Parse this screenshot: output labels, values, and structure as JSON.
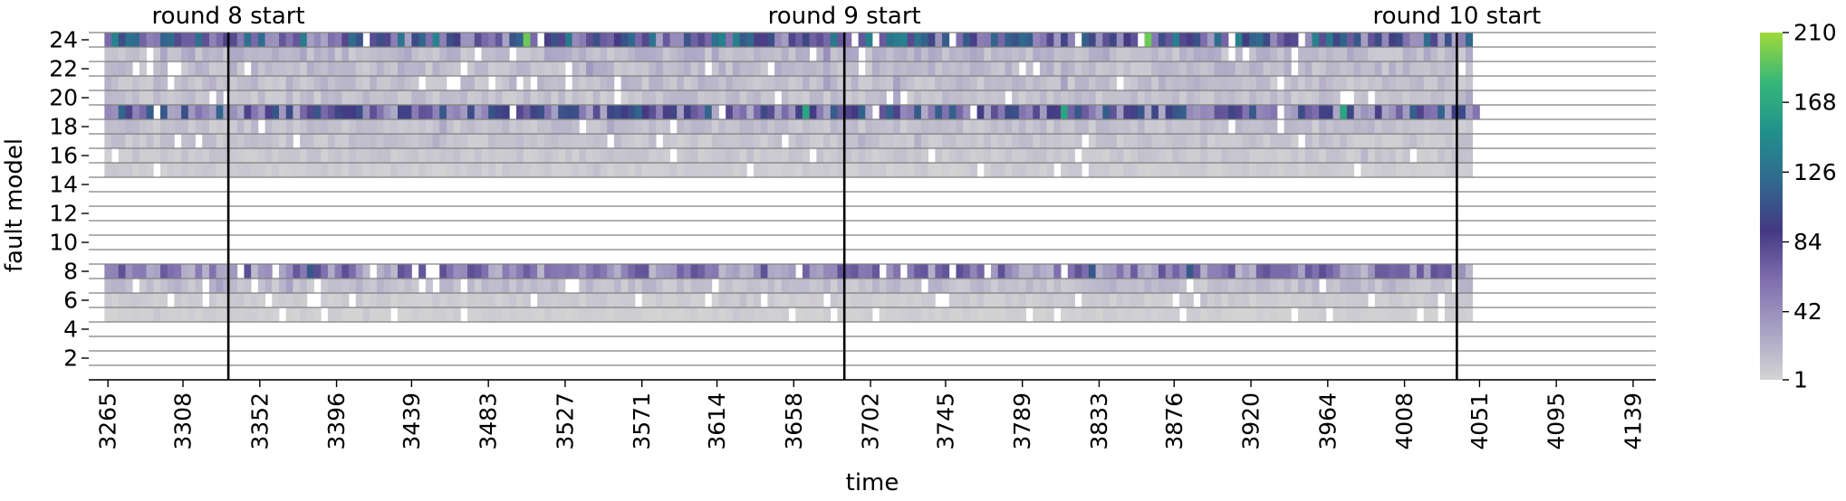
{
  "chart_data": {
    "type": "heatmap",
    "title": "",
    "xlabel": "time",
    "ylabel": "fault model",
    "x_range": [
      3254,
      4152
    ],
    "x_ticks": [
      3265,
      3308,
      3352,
      3396,
      3439,
      3483,
      3527,
      3571,
      3614,
      3658,
      3702,
      3745,
      3789,
      3833,
      3876,
      3920,
      3964,
      4008,
      4051,
      4095,
      4139
    ],
    "y_rows": [
      1,
      24
    ],
    "y_ticks": [
      2,
      4,
      6,
      8,
      10,
      12,
      14,
      16,
      18,
      20,
      22,
      24
    ],
    "horizontal_gridlines": true,
    "colorbar": {
      "min": 1,
      "max": 210,
      "ticks": [
        1,
        42,
        84,
        126,
        168,
        210
      ],
      "colormap": [
        "#d4d4d4",
        "#a8a2c4",
        "#7f6fae",
        "#443983",
        "#31688e",
        "#21918c",
        "#35b779",
        "#a0da39"
      ]
    },
    "annotations": [
      {
        "x": 3334,
        "text": "round 8 start"
      },
      {
        "x": 3687,
        "text": "round 9 start"
      },
      {
        "x": 4038,
        "text": "round 10 start"
      }
    ],
    "rows": [
      {
        "row": 24,
        "x_start": 3263,
        "x_end": 4044,
        "level": 85
      },
      {
        "row": 23,
        "x_start": 3263,
        "x_end": 4044,
        "level": 18
      },
      {
        "row": 22,
        "x_start": 3263,
        "x_end": 4044,
        "level": 16
      },
      {
        "row": 21,
        "x_start": 3263,
        "x_end": 4044,
        "level": 14
      },
      {
        "row": 20,
        "x_start": 3263,
        "x_end": 4044,
        "level": 12
      },
      {
        "row": 19,
        "x_start": 3263,
        "x_end": 4048,
        "level": 72
      },
      {
        "row": 18,
        "x_start": 3263,
        "x_end": 4044,
        "level": 12
      },
      {
        "row": 17,
        "x_start": 3263,
        "x_end": 4044,
        "level": 10
      },
      {
        "row": 16,
        "x_start": 3263,
        "x_end": 4044,
        "level": 8
      },
      {
        "row": 15,
        "x_start": 3263,
        "x_end": 4044,
        "level": 6
      },
      {
        "row": 8,
        "x_start": 3263,
        "x_end": 4044,
        "level": 48
      },
      {
        "row": 7,
        "x_start": 3263,
        "x_end": 4044,
        "level": 14
      },
      {
        "row": 6,
        "x_start": 3263,
        "x_end": 4044,
        "level": 6
      },
      {
        "row": 5,
        "x_start": 3263,
        "x_end": 4044,
        "level": 4
      }
    ]
  }
}
